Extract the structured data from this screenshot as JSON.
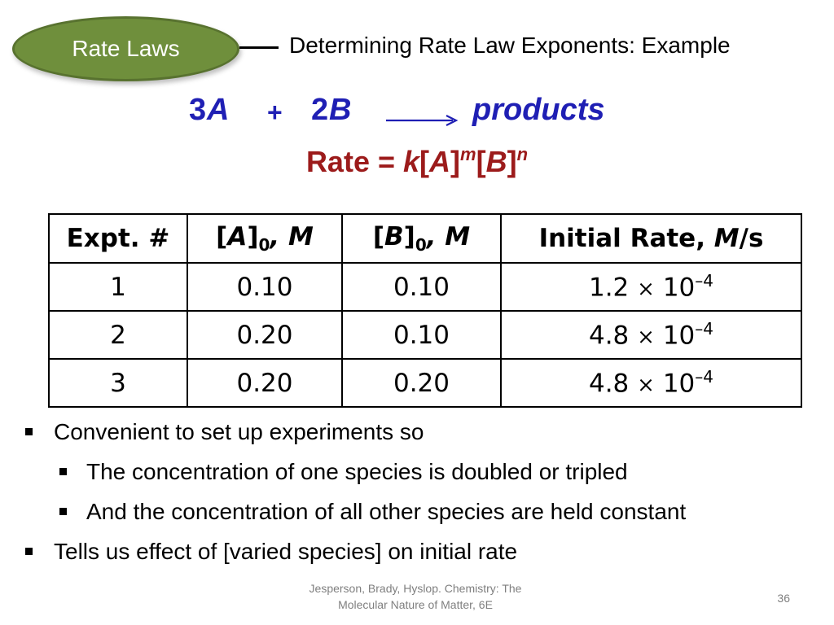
{
  "section_label": "Rate Laws",
  "title": "Determining Rate Law Exponents: Example",
  "equation": {
    "coef_a": "3",
    "species_a": "A",
    "plus": "+",
    "coef_b": "2",
    "species_b": "B",
    "products": "products"
  },
  "rate_law": {
    "prefix": "Rate =",
    "k": "k",
    "open1": "[",
    "species_a": "A",
    "close1": "]",
    "exp_m": "m",
    "open2": "[",
    "species_b": "B",
    "close2": "]",
    "exp_n": "n"
  },
  "table": {
    "headers": {
      "expt": "Expt. #",
      "a_open": "[",
      "a_species": "A",
      "a_close": "]",
      "a_sub": "0",
      "a_unit": ", M",
      "b_open": "[",
      "b_species": "B",
      "b_close": "]",
      "b_sub": "0",
      "b_unit": ", M",
      "rate_label": "Initial Rate, ",
      "rate_unit_m": "M",
      "rate_unit_s": "/s"
    },
    "rows": [
      {
        "expt": "1",
        "a": "0.10",
        "b": "0.10",
        "mantissa": "1.2",
        "times": "×",
        "base": "10",
        "exponent": "–4"
      },
      {
        "expt": "2",
        "a": "0.20",
        "b": "0.10",
        "mantissa": "4.8",
        "times": "×",
        "base": "10",
        "exponent": "–4"
      },
      {
        "expt": "3",
        "a": "0.20",
        "b": "0.20",
        "mantissa": "4.8",
        "times": "×",
        "base": "10",
        "exponent": "–4"
      }
    ]
  },
  "bullets": [
    {
      "level": 1,
      "text": "Convenient to set up experiments so"
    },
    {
      "level": 2,
      "text": "The concentration of one species is doubled or tripled"
    },
    {
      "level": 2,
      "text": "And the concentration of all other species are held constant"
    },
    {
      "level": 1,
      "text": "Tells us effect of [varied species] on initial rate"
    }
  ],
  "footer": {
    "source_line1": "Jesperson, Brady, Hyslop. Chemistry: The",
    "source_line2": "Molecular Nature of Matter, 6E",
    "slide_number": "36"
  },
  "colors": {
    "oval_fill": "#6f8f3c",
    "equation": "#1f1fb4",
    "rate_law": "#9c1b1b",
    "footer": "#7f7f7f"
  }
}
